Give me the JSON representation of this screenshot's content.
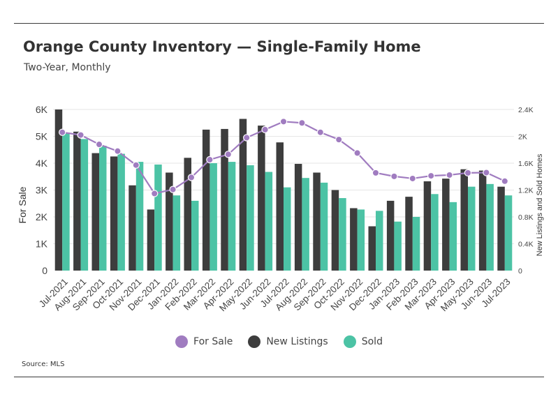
{
  "header": {
    "title": "Orange County Inventory — Single-Family Home",
    "subtitle": "Two-Year, Monthly"
  },
  "footer": {
    "source": "Source: MLS"
  },
  "colors": {
    "for_sale": "#a07cc0",
    "new_listings": "#3d3d3d",
    "sold": "#4cc3a5"
  },
  "chart_data": {
    "type": "bar",
    "categories": [
      "Jul-2021",
      "Aug-2021",
      "Sep-2021",
      "Oct-2021",
      "Nov-2021",
      "Dec-2021",
      "Jan-2022",
      "Feb-2022",
      "Mar-2022",
      "Apr-2022",
      "May-2022",
      "Jun-2022",
      "Jul-2022",
      "Aug-2022",
      "Sep-2022",
      "Oct-2022",
      "Nov-2022",
      "Dec-2022",
      "Jan-2023",
      "Feb-2023",
      "Mar-2023",
      "Apr-2023",
      "May-2023",
      "Jun-2023",
      "Jul-2023"
    ],
    "y_left": {
      "label": "For Sale",
      "range": [
        0,
        6000
      ],
      "ticks": [
        "0",
        "1K",
        "2K",
        "3K",
        "4K",
        "5K",
        "6K"
      ]
    },
    "y_right": {
      "label": "New Listings and Sold Homes",
      "range": [
        0,
        2400
      ],
      "ticks": [
        "0",
        "0.4K",
        "0.8K",
        "1.2K",
        "1.6K",
        "2K",
        "2.4K"
      ]
    },
    "series": [
      {
        "name": "For Sale",
        "type": "line",
        "axis": "left",
        "values": [
          5150,
          5050,
          4700,
          4450,
          3930,
          2870,
          3020,
          3470,
          4130,
          4330,
          4950,
          5250,
          5550,
          5500,
          5150,
          4880,
          4380,
          3640,
          3510,
          3430,
          3530,
          3560,
          3640,
          3650,
          3330
        ]
      },
      {
        "name": "New Listings",
        "type": "bar",
        "axis": "right",
        "values": [
          2400,
          2070,
          1750,
          1700,
          1270,
          910,
          1460,
          1680,
          2100,
          2110,
          2260,
          2160,
          1910,
          1590,
          1460,
          1200,
          930,
          660,
          1040,
          1100,
          1330,
          1370,
          1510,
          1490,
          1250
        ]
      },
      {
        "name": "Sold",
        "type": "bar",
        "axis": "right",
        "values": [
          2050,
          1960,
          1860,
          1740,
          1620,
          1580,
          1120,
          1040,
          1600,
          1620,
          1570,
          1470,
          1240,
          1380,
          1310,
          1080,
          910,
          890,
          730,
          800,
          1140,
          1020,
          1250,
          1290,
          1120
        ]
      }
    ],
    "legend": {
      "position": "bottom-center"
    }
  }
}
